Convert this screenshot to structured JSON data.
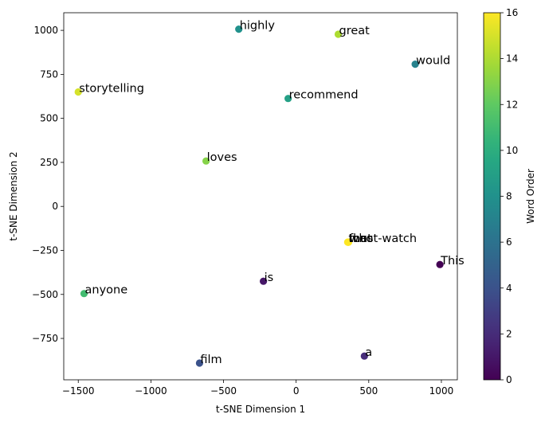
{
  "chart_data": {
    "type": "scatter",
    "xlabel": "t-SNE Dimension 1",
    "ylabel": "t-SNE Dimension 2",
    "xlim": [
      -1600,
      1110
    ],
    "ylim": [
      -985,
      1100
    ],
    "xticks": [
      -1500,
      -1000,
      -500,
      0,
      500,
      1000
    ],
    "yticks": [
      -750,
      -500,
      -250,
      0,
      250,
      500,
      750,
      1000
    ],
    "grid": false,
    "colormap": "viridis",
    "colorbar": {
      "label": "Word Order",
      "min": 0,
      "max": 16,
      "ticks": [
        0,
        2,
        4,
        6,
        8,
        10,
        12,
        14,
        16
      ]
    },
    "points": [
      {
        "word": "This",
        "order": 0,
        "x": 990,
        "y": -330
      },
      {
        "word": "is",
        "order": 1,
        "x": -225,
        "y": -425
      },
      {
        "word": "a",
        "order": 2,
        "x": 470,
        "y": -850
      },
      {
        "word": "film",
        "order": 4,
        "x": -665,
        "y": -890
      },
      {
        "word": "would",
        "order": 7,
        "x": 820,
        "y": 808
      },
      {
        "word": "highly",
        "order": 8,
        "x": -395,
        "y": 1007
      },
      {
        "word": "recommend",
        "order": 9,
        "x": -55,
        "y": 613
      },
      {
        "word": "anyone",
        "order": 11,
        "x": -1460,
        "y": -495
      },
      {
        "word": "loves",
        "order": 13,
        "x": -620,
        "y": 258
      },
      {
        "word": "great",
        "order": 14,
        "x": 290,
        "y": 978
      },
      {
        "word": "storytelling",
        "order": 15,
        "x": -1500,
        "y": 650
      },
      {
        "word": "that",
        "order": 16,
        "x": 355,
        "y": -203
      },
      {
        "word": "must-watch",
        "order": 16,
        "x": 357,
        "y": -203
      },
      {
        "word": "for",
        "order": 16,
        "x": 359,
        "y": -203
      },
      {
        "word": "who",
        "order": 16,
        "x": 361,
        "y": -203
      }
    ]
  }
}
